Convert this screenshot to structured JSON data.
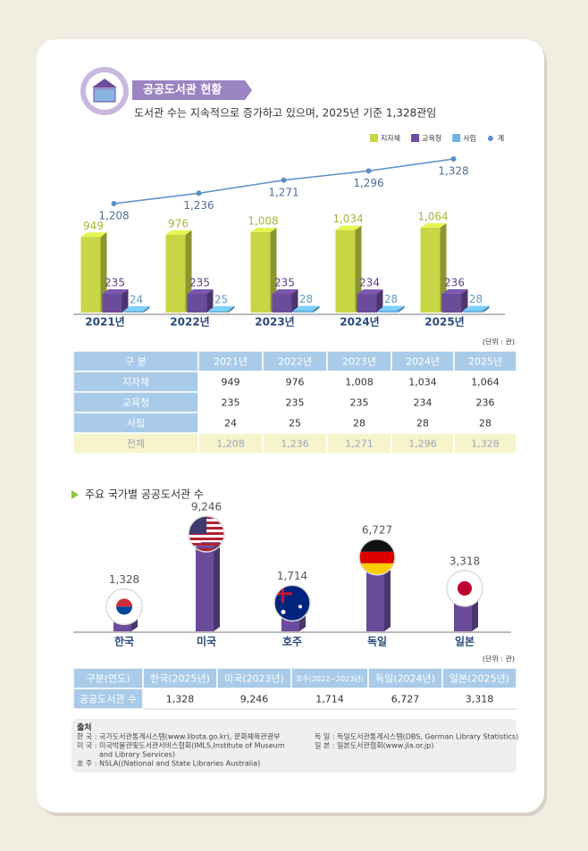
{
  "header": {
    "title": "공공도서관 현황",
    "subtitle": "도서관 수는 지속적으로 증가하고 있으며, 2025년 기준 1,328관임"
  },
  "chart_data": [
    {
      "type": "bar3d",
      "unit": "(단위 : 관)",
      "categories": [
        "2021년",
        "2022년",
        "2023년",
        "2024년",
        "2025년"
      ],
      "series": [
        {
          "name": "지자체",
          "color": "#c8d646",
          "values": [
            949,
            976,
            1008,
            1034,
            1064
          ],
          "value_labels": [
            "949",
            "976",
            "1,008",
            "1,034",
            "1,064"
          ]
        },
        {
          "name": "교육청",
          "color": "#6b4c9a",
          "values": [
            235,
            235,
            235,
            234,
            236
          ]
        },
        {
          "name": "사립",
          "color": "#6cb6e2",
          "values": [
            24,
            25,
            28,
            28,
            28
          ]
        },
        {
          "name": "계",
          "type": "line",
          "color": "#5b8fc9",
          "values": [
            1208,
            1236,
            1271,
            1296,
            1328
          ],
          "value_labels": [
            "1,208",
            "1,236",
            "1,271",
            "1,296",
            "1,328"
          ]
        }
      ]
    },
    {
      "type": "column-flags",
      "title": "주요 국가별 공공도서관 수",
      "unit": "(단위 : 관)",
      "color": "#6b4c9a",
      "categories": [
        "한국",
        "미국",
        "호주",
        "독일",
        "일본"
      ],
      "values": [
        1328,
        9246,
        1714,
        6727,
        3318
      ],
      "value_labels": [
        "1,328",
        "9,246",
        "1,714",
        "6,727",
        "3,318"
      ]
    }
  ],
  "table1": {
    "header": [
      "구 분",
      "2021년",
      "2022년",
      "2023년",
      "2024년",
      "2025년"
    ],
    "rows": [
      [
        "지자체",
        "949",
        "976",
        "1,008",
        "1,034",
        "1,064"
      ],
      [
        "교육청",
        "235",
        "235",
        "235",
        "234",
        "236"
      ],
      [
        "사립",
        "24",
        "25",
        "28",
        "28",
        "28"
      ],
      [
        "전체",
        "1,208",
        "1,236",
        "1,271",
        "1,296",
        "1,328"
      ]
    ]
  },
  "table2": {
    "header": [
      "구분(연도)",
      "한국(2025년)",
      "미국(2023년)",
      "호주(2022~2023년)",
      "독일(2024년)",
      "일본(2025년)"
    ],
    "rows": [
      [
        "공공도서관 수",
        "1,328",
        "9,246",
        "1,714",
        "6,727",
        "3,318"
      ]
    ]
  },
  "sources": {
    "title": "출처",
    "left": [
      "한 국 : 국가도서관통계시스템(www.libsta.go.kr), 문화체육관광부",
      "미 국 : 미국박물관및도서관서비스협회(IMLS,Institute of Museum",
      "and Library Services)",
      "호 주 : NSLA((National and State Libraries Australia)"
    ],
    "right": [
      "독 일 : 독일도서관통계시스템(DBS, German Library Statistics)",
      "일 본 : 일본도서관협회(www.jla.or.jp)"
    ]
  }
}
